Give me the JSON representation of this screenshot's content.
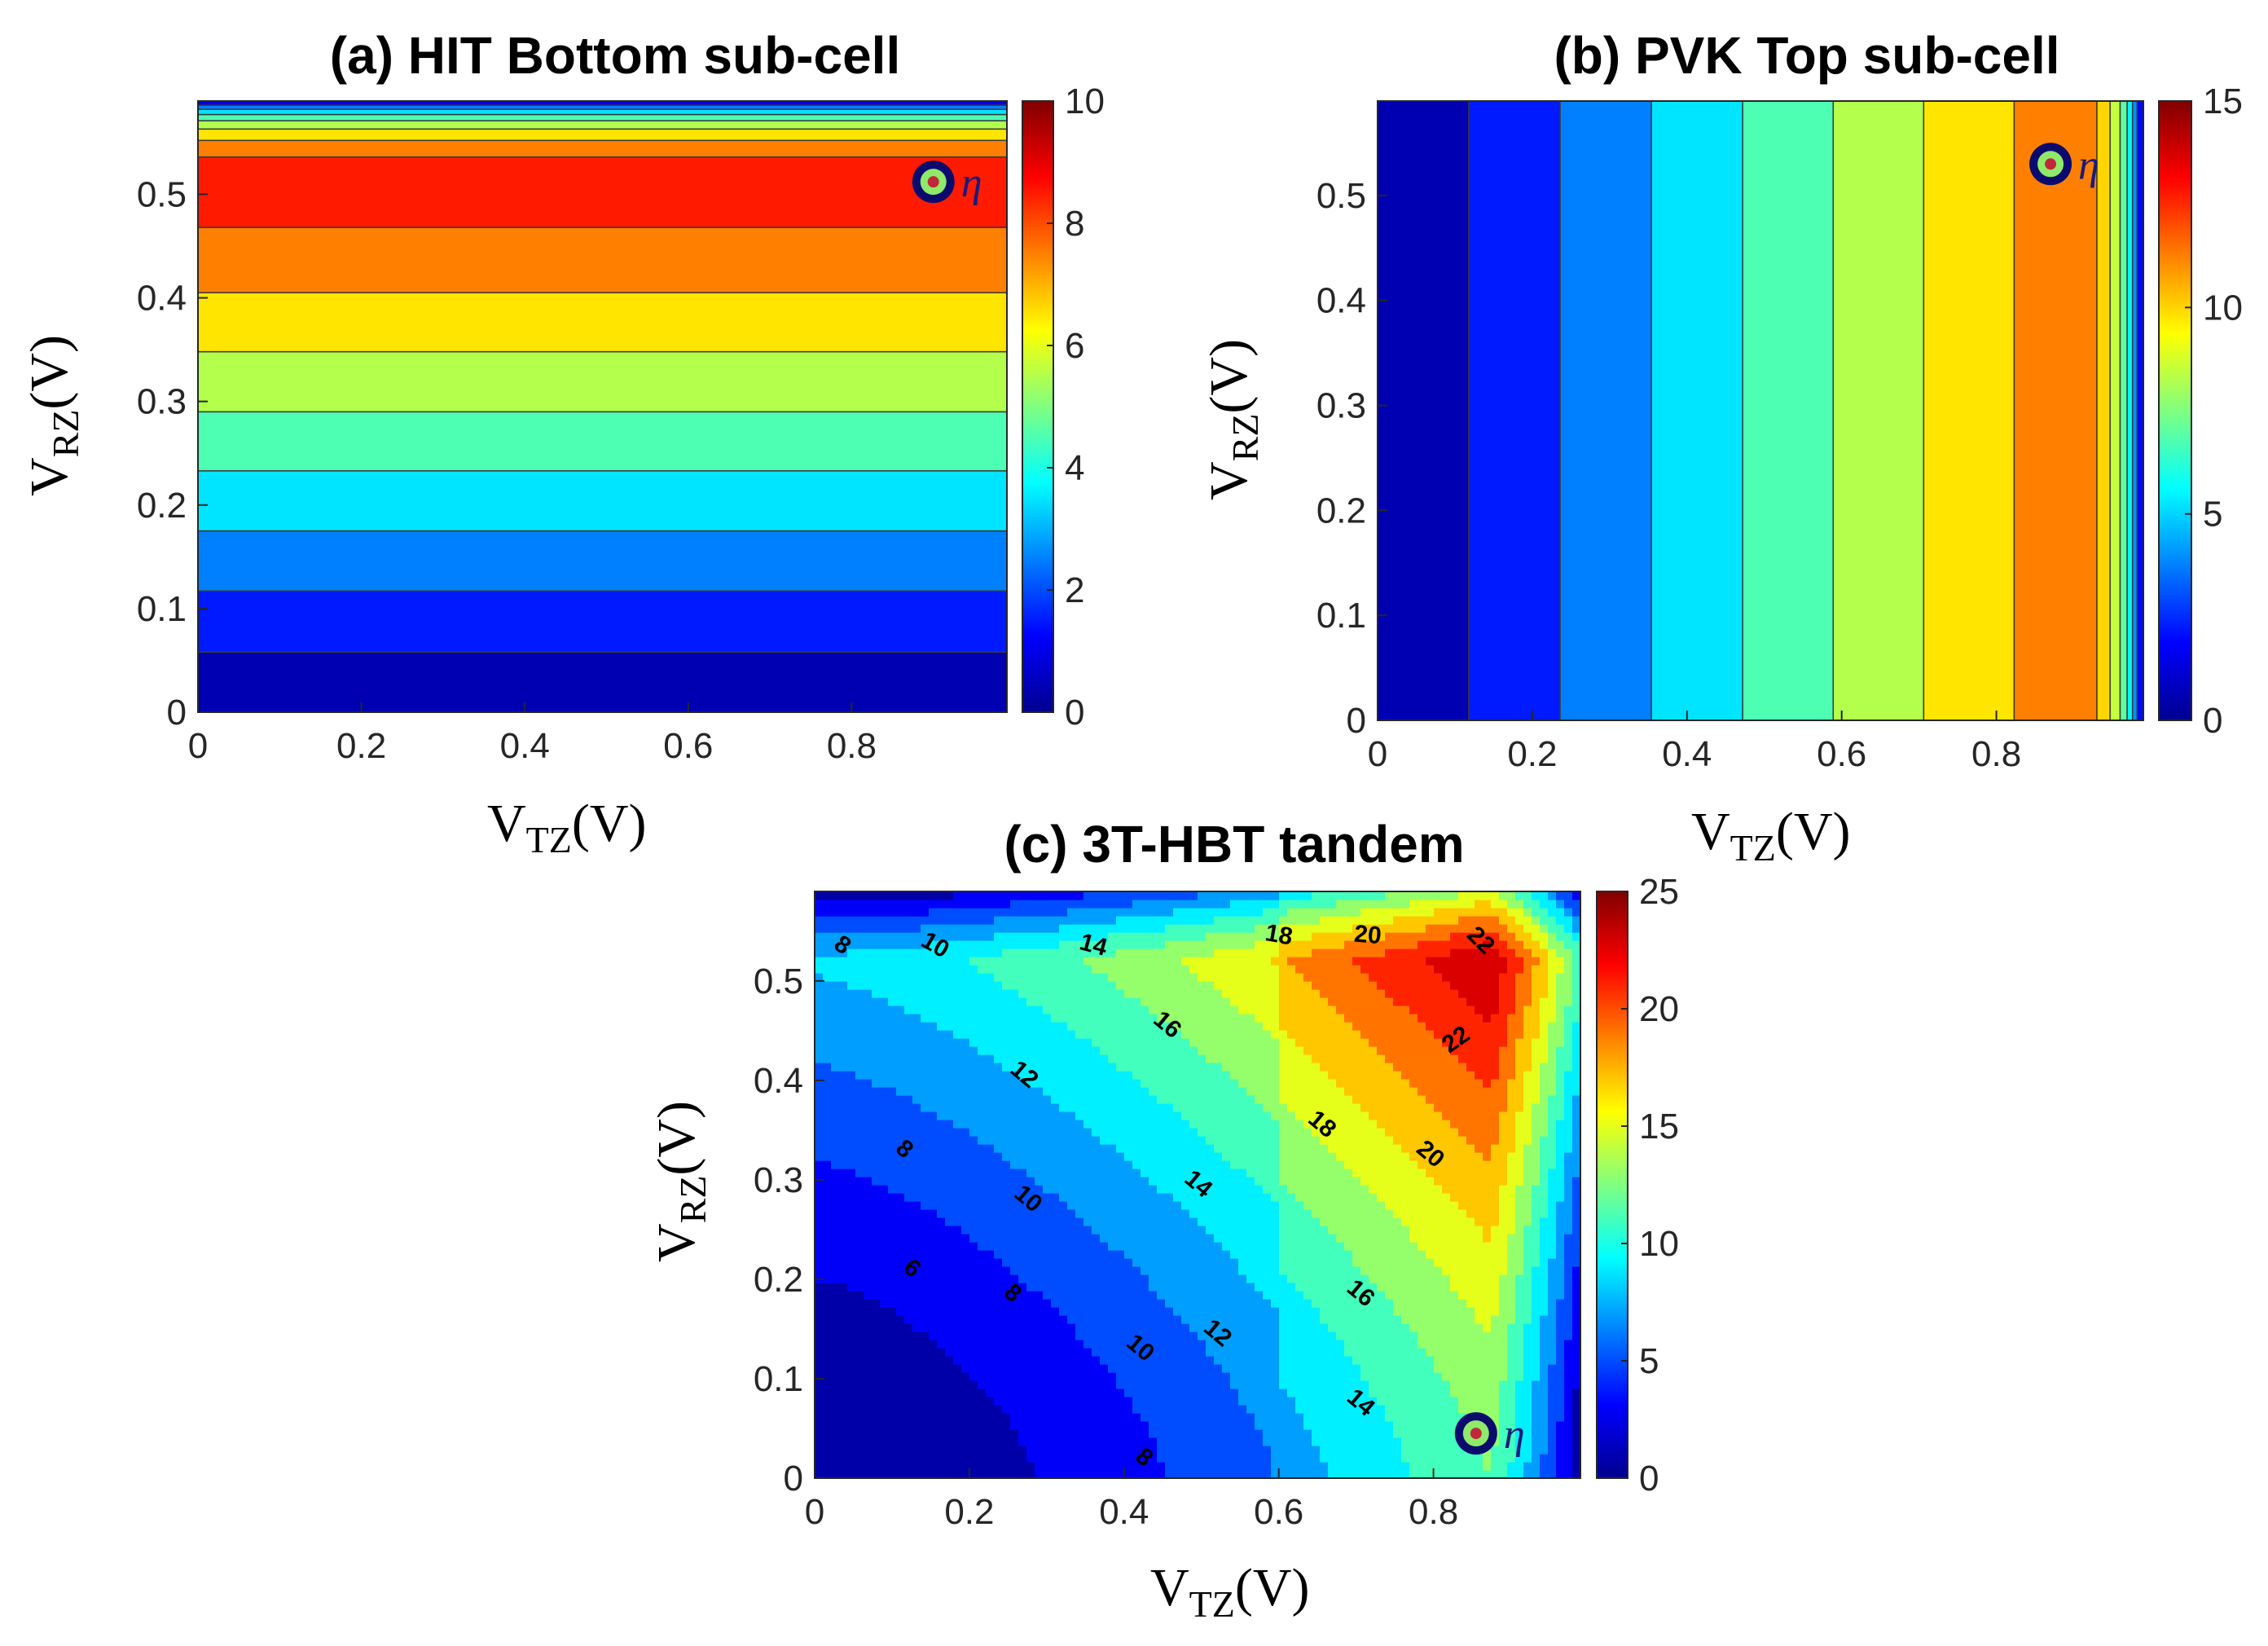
{
  "chart_data": [
    {
      "id": "a",
      "type": "heatmap",
      "title": "(a) HIT Bottom sub-cell",
      "xlabel": "V",
      "xlabel_sub": "TZ",
      "xlabel_unit": "(V)",
      "ylabel": "V",
      "ylabel_sub": "RZ",
      "ylabel_unit": "(V)",
      "xlim": [
        0,
        0.99
      ],
      "ylim": [
        0,
        0.59
      ],
      "x_ticks": [
        "0",
        "0.2",
        "0.4",
        "0.6",
        "0.8"
      ],
      "y_ticks": [
        "0",
        "0.1",
        "0.2",
        "0.3",
        "0.4",
        "0.5"
      ],
      "colorbar": {
        "min": 0,
        "max": 10,
        "ticks": [
          "0",
          "2",
          "4",
          "6",
          "8",
          "10"
        ]
      },
      "orientation": "horizontal",
      "bands": [
        {
          "from": 0.0,
          "to": 0.058,
          "value": 0.5
        },
        {
          "from": 0.058,
          "to": 0.117,
          "value": 1.5
        },
        {
          "from": 0.117,
          "to": 0.175,
          "value": 2.5
        },
        {
          "from": 0.175,
          "to": 0.233,
          "value": 3.5
        },
        {
          "from": 0.233,
          "to": 0.29,
          "value": 4.5
        },
        {
          "from": 0.29,
          "to": 0.348,
          "value": 5.5
        },
        {
          "from": 0.348,
          "to": 0.405,
          "value": 6.5
        },
        {
          "from": 0.405,
          "to": 0.468,
          "value": 7.5
        },
        {
          "from": 0.468,
          "to": 0.536,
          "value": 8.5
        },
        {
          "from": 0.536,
          "to": 0.552,
          "value": 7.5
        },
        {
          "from": 0.552,
          "to": 0.563,
          "value": 6.5
        },
        {
          "from": 0.563,
          "to": 0.571,
          "value": 5.5
        },
        {
          "from": 0.571,
          "to": 0.577,
          "value": 4.5
        },
        {
          "from": 0.577,
          "to": 0.582,
          "value": 3.5
        },
        {
          "from": 0.582,
          "to": 0.586,
          "value": 2.5
        },
        {
          "from": 0.586,
          "to": 0.59,
          "value": 1.0
        }
      ],
      "marker": {
        "x": 0.9,
        "y": 0.512,
        "label": "η"
      }
    },
    {
      "id": "b",
      "type": "heatmap",
      "title": "(b) PVK Top sub-cell",
      "xlabel": "V",
      "xlabel_sub": "TZ",
      "xlabel_unit": "(V)",
      "ylabel": "V",
      "ylabel_sub": "RZ",
      "ylabel_unit": "(V)",
      "xlim": [
        0,
        0.99
      ],
      "ylim": [
        0,
        0.59
      ],
      "x_ticks": [
        "0",
        "0.2",
        "0.4",
        "0.6",
        "0.8"
      ],
      "y_ticks": [
        "0",
        "0.1",
        "0.2",
        "0.3",
        "0.4",
        "0.5"
      ],
      "colorbar": {
        "min": 0,
        "max": 15,
        "ticks": [
          "0",
          "5",
          "10",
          "15"
        ]
      },
      "orientation": "vertical",
      "bands": [
        {
          "from": 0.0,
          "to": 0.118,
          "value": 0.75
        },
        {
          "from": 0.118,
          "to": 0.236,
          "value": 2.25
        },
        {
          "from": 0.236,
          "to": 0.354,
          "value": 3.75
        },
        {
          "from": 0.354,
          "to": 0.472,
          "value": 5.25
        },
        {
          "from": 0.472,
          "to": 0.589,
          "value": 6.75
        },
        {
          "from": 0.589,
          "to": 0.706,
          "value": 8.25
        },
        {
          "from": 0.706,
          "to": 0.823,
          "value": 9.75
        },
        {
          "from": 0.823,
          "to": 0.93,
          "value": 11.25
        },
        {
          "from": 0.93,
          "to": 0.947,
          "value": 10.0
        },
        {
          "from": 0.947,
          "to": 0.96,
          "value": 8.5
        },
        {
          "from": 0.96,
          "to": 0.969,
          "value": 7.0
        },
        {
          "from": 0.969,
          "to": 0.976,
          "value": 5.5
        },
        {
          "from": 0.976,
          "to": 0.982,
          "value": 4.0
        },
        {
          "from": 0.982,
          "to": 0.99,
          "value": 2.0
        }
      ],
      "marker": {
        "x": 0.87,
        "y": 0.53,
        "label": "η"
      }
    },
    {
      "id": "c",
      "type": "heatmap",
      "title": "(c) 3T-HBT tandem",
      "xlabel": "V",
      "xlabel_sub": "TZ",
      "xlabel_unit": "(V)",
      "ylabel": "V",
      "ylabel_sub": "RZ",
      "ylabel_unit": "(V)",
      "xlim": [
        0,
        0.99
      ],
      "ylim": [
        0,
        0.59
      ],
      "x_ticks": [
        "0",
        "0.2",
        "0.4",
        "0.6",
        "0.8"
      ],
      "y_ticks": [
        "0",
        "0.1",
        "0.2",
        "0.3",
        "0.4",
        "0.5"
      ],
      "colorbar": {
        "min": 0,
        "max": 25,
        "ticks": [
          "0",
          "5",
          "10",
          "15",
          "20",
          "25"
        ]
      },
      "levels": [
        2,
        4,
        6,
        8,
        10,
        12,
        14,
        16,
        18,
        20,
        22
      ],
      "contour_labels": [
        {
          "x": 0.035,
          "y": 0.535,
          "text": "8",
          "angle": 35
        },
        {
          "x": 0.155,
          "y": 0.535,
          "text": "10",
          "angle": 30
        },
        {
          "x": 0.36,
          "y": 0.535,
          "text": "14",
          "angle": 15
        },
        {
          "x": 0.6,
          "y": 0.545,
          "text": "18",
          "angle": 10
        },
        {
          "x": 0.715,
          "y": 0.545,
          "text": "20",
          "angle": 5
        },
        {
          "x": 0.86,
          "y": 0.54,
          "text": "22",
          "angle": 45
        },
        {
          "x": 0.83,
          "y": 0.44,
          "text": "22",
          "angle": -35
        },
        {
          "x": 0.455,
          "y": 0.455,
          "text": "16",
          "angle": 40
        },
        {
          "x": 0.27,
          "y": 0.405,
          "text": "12",
          "angle": 40
        },
        {
          "x": 0.115,
          "y": 0.33,
          "text": "8",
          "angle": 40
        },
        {
          "x": 0.275,
          "y": 0.28,
          "text": "10",
          "angle": 40
        },
        {
          "x": 0.655,
          "y": 0.355,
          "text": "18",
          "angle": 40
        },
        {
          "x": 0.795,
          "y": 0.325,
          "text": "20",
          "angle": 40
        },
        {
          "x": 0.495,
          "y": 0.295,
          "text": "14",
          "angle": 40
        },
        {
          "x": 0.125,
          "y": 0.21,
          "text": "6",
          "angle": 40
        },
        {
          "x": 0.255,
          "y": 0.185,
          "text": "8",
          "angle": 40
        },
        {
          "x": 0.52,
          "y": 0.145,
          "text": "12",
          "angle": 40
        },
        {
          "x": 0.705,
          "y": 0.185,
          "text": "16",
          "angle": 40
        },
        {
          "x": 0.42,
          "y": 0.13,
          "text": "10",
          "angle": 40
        },
        {
          "x": 0.705,
          "y": 0.075,
          "text": "14",
          "angle": 40
        },
        {
          "x": 0.425,
          "y": 0.02,
          "text": "8",
          "angle": 40
        }
      ],
      "peak_efficiency": 23.5,
      "marker": {
        "x": 0.855,
        "y": 0.045,
        "label": "η"
      }
    }
  ]
}
